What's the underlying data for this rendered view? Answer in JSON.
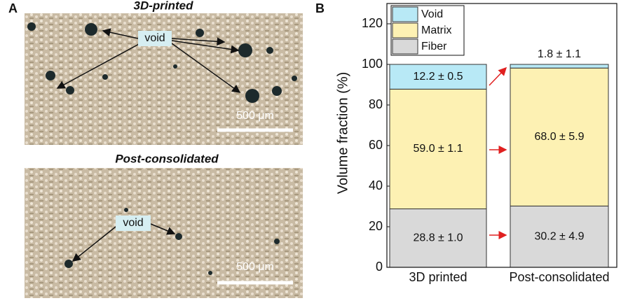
{
  "panel_labels": [
    "A",
    "B"
  ],
  "micrographs": [
    {
      "title": "3D-printed",
      "annotation": "void",
      "scale_bar": "500 μm"
    },
    {
      "title": "Post-consolidated",
      "annotation": "void",
      "scale_bar": "500 μm"
    }
  ],
  "chart_data": {
    "type": "stacked-bar",
    "y_label": "Volume fraction (%)",
    "categories": [
      "3D printed",
      "Post-consolidated"
    ],
    "series": [
      {
        "name": "Fiber",
        "color": "#d9d9d9",
        "values": [
          28.8,
          30.2
        ],
        "value_labels": [
          "28.8 ± 1.0",
          "30.2 ± 4.9"
        ]
      },
      {
        "name": "Matrix",
        "color": "#fdf1b3",
        "values": [
          59.0,
          68.0
        ],
        "value_labels": [
          "59.0 ± 1.1",
          "68.0 ± 5.9"
        ]
      },
      {
        "name": "Void",
        "color": "#b8e9f6",
        "values": [
          12.2,
          1.8
        ],
        "value_labels": [
          "12.2 ± 0.5",
          "1.8 ± 1.1"
        ]
      }
    ],
    "ylim": [
      0,
      130
    ],
    "yticks": [
      0,
      20,
      40,
      60,
      80,
      100,
      120
    ],
    "legend": "upper left"
  }
}
